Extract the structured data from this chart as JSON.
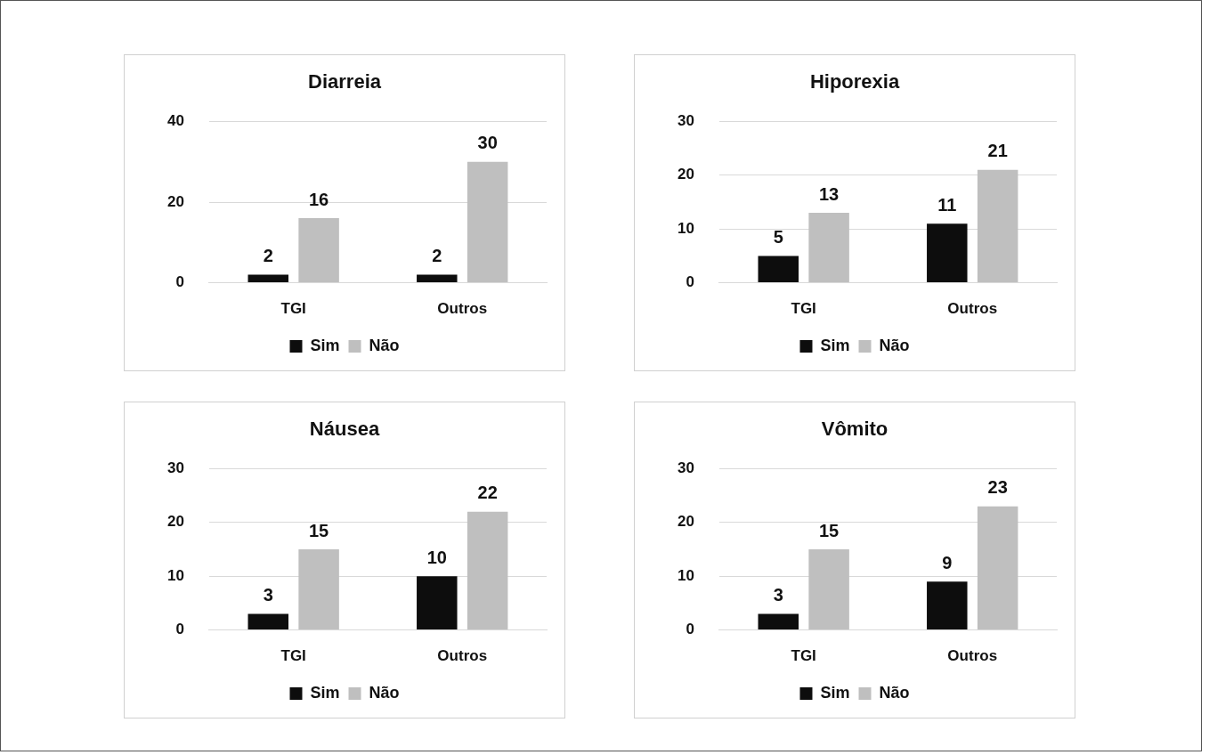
{
  "chart_data": [
    {
      "type": "bar",
      "title": "Diarreia",
      "categories": [
        "TGI",
        "Outros"
      ],
      "series": [
        {
          "name": "Sim",
          "color": "#0d0d0d",
          "values": [
            2,
            2
          ]
        },
        {
          "name": "Não",
          "color": "#bfbfbf",
          "values": [
            16,
            30
          ]
        }
      ],
      "ylim": [
        0,
        40
      ],
      "yticks": [
        0,
        20,
        40
      ],
      "grid": "y",
      "legend": "bottom",
      "data_labels": true
    },
    {
      "type": "bar",
      "title": "Hiporexia",
      "categories": [
        "TGI",
        "Outros"
      ],
      "series": [
        {
          "name": "Sim",
          "color": "#0d0d0d",
          "values": [
            5,
            11
          ]
        },
        {
          "name": "Não",
          "color": "#bfbfbf",
          "values": [
            13,
            21
          ]
        }
      ],
      "ylim": [
        0,
        30
      ],
      "yticks": [
        0,
        10,
        20,
        30
      ],
      "grid": "y",
      "legend": "bottom",
      "data_labels": true
    },
    {
      "type": "bar",
      "title": "Náusea",
      "categories": [
        "TGI",
        "Outros"
      ],
      "series": [
        {
          "name": "Sim",
          "color": "#0d0d0d",
          "values": [
            3,
            10
          ]
        },
        {
          "name": "Não",
          "color": "#bfbfbf",
          "values": [
            15,
            22
          ]
        }
      ],
      "ylim": [
        0,
        30
      ],
      "yticks": [
        0,
        10,
        20,
        30
      ],
      "grid": "y",
      "legend": "bottom",
      "data_labels": true
    },
    {
      "type": "bar",
      "title": "Vômito",
      "categories": [
        "TGI",
        "Outros"
      ],
      "series": [
        {
          "name": "Sim",
          "color": "#0d0d0d",
          "values": [
            3,
            9
          ]
        },
        {
          "name": "Não",
          "color": "#bfbfbf",
          "values": [
            15,
            23
          ]
        }
      ],
      "ylim": [
        0,
        30
      ],
      "yticks": [
        0,
        10,
        20,
        30
      ],
      "grid": "y",
      "legend": "bottom",
      "data_labels": true
    }
  ]
}
